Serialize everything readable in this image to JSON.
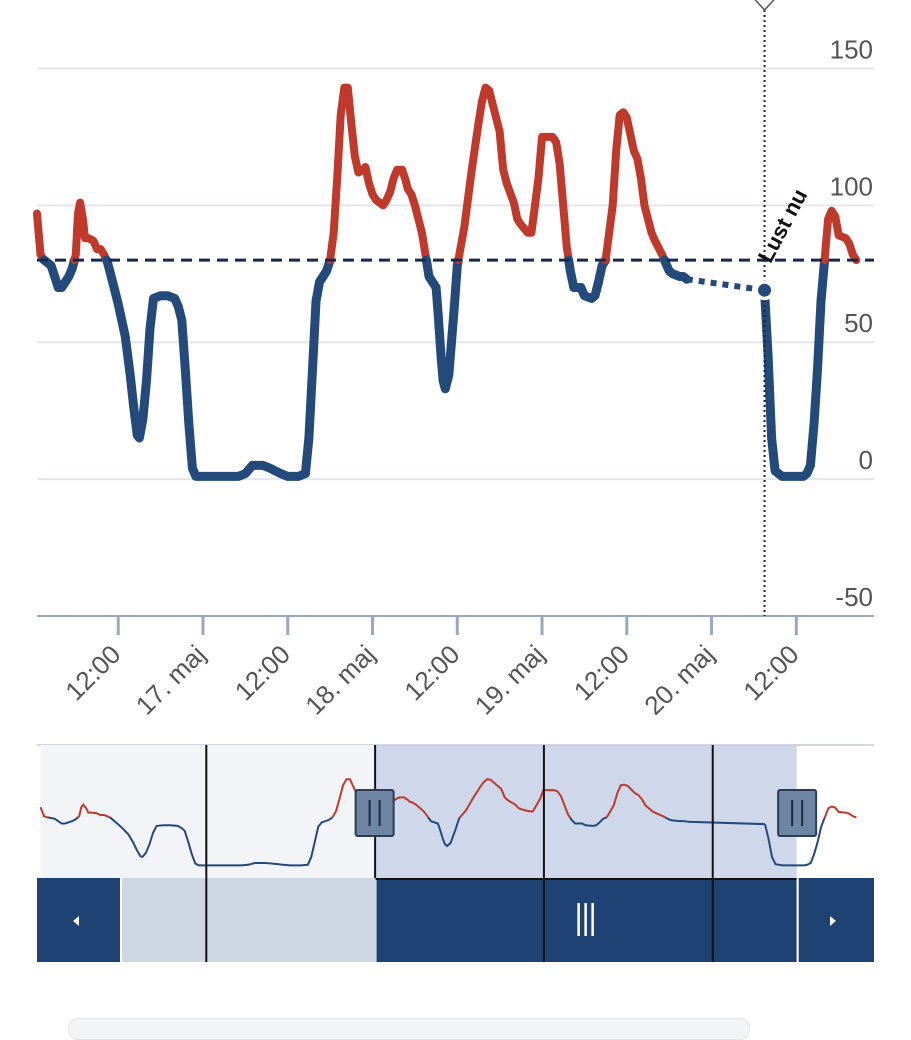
{
  "colors": {
    "above": "#c0392b",
    "below": "#234a7a",
    "target": "#142a4f",
    "grid": "#e3e6ee",
    "nav_dark": "#1e4274",
    "nav_selected": "#cdd7e4",
    "scroll_mask": "#c7d0e6",
    "handle": "#6e85a3"
  },
  "chart_data": {
    "type": "line",
    "title": "",
    "xlabel": "",
    "ylabel": "",
    "ylim": [
      -50,
      175
    ],
    "y_ticks": [
      150,
      100,
      50,
      0,
      -50
    ],
    "x_tick_labels": [
      "12:00",
      "17. maj",
      "12:00",
      "18. maj",
      "12:00",
      "19. maj",
      "12:00",
      "20. maj",
      "12:00"
    ],
    "x_tick_hours": [
      12,
      24,
      36,
      48,
      60,
      72,
      84,
      96,
      108
    ],
    "x_range_hours": [
      0.5,
      119
    ],
    "grid": true,
    "target_line": 80,
    "now": {
      "label": "Lust nu",
      "hour": 103.5,
      "value": 69
    },
    "series": [
      {
        "values": [
          [
            0.5,
            97
          ],
          [
            1,
            82
          ],
          [
            1.5,
            80
          ],
          [
            2.5,
            78
          ],
          [
            3,
            74
          ],
          [
            3.5,
            70
          ],
          [
            4,
            70
          ],
          [
            4.5,
            72
          ],
          [
            5,
            74
          ],
          [
            5.5,
            77
          ],
          [
            6,
            82
          ],
          [
            6.3,
            97
          ],
          [
            6.6,
            101
          ],
          [
            7,
            95
          ],
          [
            7.3,
            88
          ],
          [
            7.8,
            88
          ],
          [
            8.5,
            87
          ],
          [
            9,
            84
          ],
          [
            9.5,
            84
          ],
          [
            10,
            82
          ],
          [
            10.5,
            79
          ],
          [
            11,
            74
          ],
          [
            12,
            64
          ],
          [
            13,
            52
          ],
          [
            13.7,
            38
          ],
          [
            14.2,
            26
          ],
          [
            14.7,
            16
          ],
          [
            15,
            15
          ],
          [
            15.5,
            22
          ],
          [
            16,
            36
          ],
          [
            16.5,
            55
          ],
          [
            17,
            66
          ],
          [
            18,
            67
          ],
          [
            19,
            67
          ],
          [
            20,
            66
          ],
          [
            20.5,
            63
          ],
          [
            21,
            58
          ],
          [
            21.5,
            40
          ],
          [
            22,
            20
          ],
          [
            22.5,
            4
          ],
          [
            23,
            1
          ],
          [
            24,
            1
          ],
          [
            26,
            1
          ],
          [
            28,
            1
          ],
          [
            29,
            1
          ],
          [
            30,
            2
          ],
          [
            31,
            5
          ],
          [
            32.5,
            5
          ],
          [
            33.5,
            4
          ],
          [
            35,
            2
          ],
          [
            36,
            1
          ],
          [
            37.5,
            1
          ],
          [
            38.5,
            2
          ],
          [
            39,
            15
          ],
          [
            39.5,
            40
          ],
          [
            40,
            65
          ],
          [
            40.5,
            72
          ],
          [
            41.5,
            76
          ],
          [
            42,
            80
          ],
          [
            42.5,
            90
          ],
          [
            43,
            110
          ],
          [
            43.5,
            133
          ],
          [
            44,
            143
          ],
          [
            44.5,
            143
          ],
          [
            45,
            130
          ],
          [
            45.5,
            118
          ],
          [
            46,
            112
          ],
          [
            46.7,
            113
          ],
          [
            47,
            114
          ],
          [
            47.5,
            108
          ],
          [
            48,
            104
          ],
          [
            48.5,
            102
          ],
          [
            49.5,
            100
          ],
          [
            50,
            102
          ],
          [
            50.5,
            105
          ],
          [
            51,
            110
          ],
          [
            51.5,
            113
          ],
          [
            52.2,
            113
          ],
          [
            52.7,
            109
          ],
          [
            53,
            106
          ],
          [
            53.5,
            104
          ],
          [
            54,
            100
          ],
          [
            55,
            90
          ],
          [
            55.5,
            82
          ],
          [
            56,
            74
          ],
          [
            57,
            70
          ],
          [
            57.3,
            60
          ],
          [
            57.7,
            45
          ],
          [
            58,
            36
          ],
          [
            58.3,
            33
          ],
          [
            58.8,
            38
          ],
          [
            59.5,
            60
          ],
          [
            60,
            78
          ],
          [
            61,
            92
          ],
          [
            62,
            112
          ],
          [
            63,
            130
          ],
          [
            63.5,
            138
          ],
          [
            64,
            143
          ],
          [
            64.5,
            142
          ],
          [
            65,
            137
          ],
          [
            66,
            127
          ],
          [
            66.5,
            113
          ],
          [
            67,
            108
          ],
          [
            68,
            101
          ],
          [
            68.5,
            95
          ],
          [
            69,
            93
          ],
          [
            70,
            90
          ],
          [
            70.5,
            90
          ],
          [
            71,
            100
          ],
          [
            71.5,
            110
          ],
          [
            72,
            125
          ],
          [
            73.5,
            125
          ],
          [
            74,
            123
          ],
          [
            74.5,
            115
          ],
          [
            75,
            100
          ],
          [
            75.5,
            85
          ],
          [
            76,
            76
          ],
          [
            76.5,
            70
          ],
          [
            77.5,
            70
          ],
          [
            78,
            67
          ],
          [
            79,
            66
          ],
          [
            79.5,
            67
          ],
          [
            80,
            72
          ],
          [
            80.5,
            78
          ],
          [
            81,
            80
          ],
          [
            82,
            100
          ],
          [
            82.5,
            120
          ],
          [
            83,
            133
          ],
          [
            83.5,
            134
          ],
          [
            84,
            132
          ],
          [
            84.5,
            126
          ],
          [
            85,
            120
          ],
          [
            85.5,
            117
          ],
          [
            86,
            110
          ],
          [
            86.5,
            100
          ],
          [
            87,
            95
          ],
          [
            87.5,
            90
          ],
          [
            88,
            87
          ],
          [
            89,
            82
          ],
          [
            89.5,
            79
          ],
          [
            90,
            76
          ],
          [
            90.5,
            75
          ],
          [
            91.5,
            74
          ],
          [
            92,
            74
          ],
          [
            92.5,
            73
          ],
          [
            103.5,
            69
          ],
          [
            104,
            45
          ],
          [
            104.5,
            15
          ],
          [
            105,
            3
          ],
          [
            106,
            1
          ],
          [
            107.5,
            1
          ],
          [
            109,
            1
          ],
          [
            109.5,
            2
          ],
          [
            110,
            5
          ],
          [
            110.5,
            20
          ],
          [
            111,
            40
          ],
          [
            111.5,
            65
          ],
          [
            112,
            80
          ],
          [
            112.5,
            95
          ],
          [
            113,
            98
          ],
          [
            113.5,
            96
          ],
          [
            114,
            89
          ],
          [
            115,
            88
          ],
          [
            115.5,
            86
          ],
          [
            116,
            82
          ],
          [
            116.5,
            80
          ]
        ]
      }
    ],
    "navigator": {
      "range_hours": [
        0,
        119
      ],
      "selected_hours": [
        48,
        108
      ],
      "grid_hours": [
        24,
        48,
        72,
        96
      ]
    }
  }
}
